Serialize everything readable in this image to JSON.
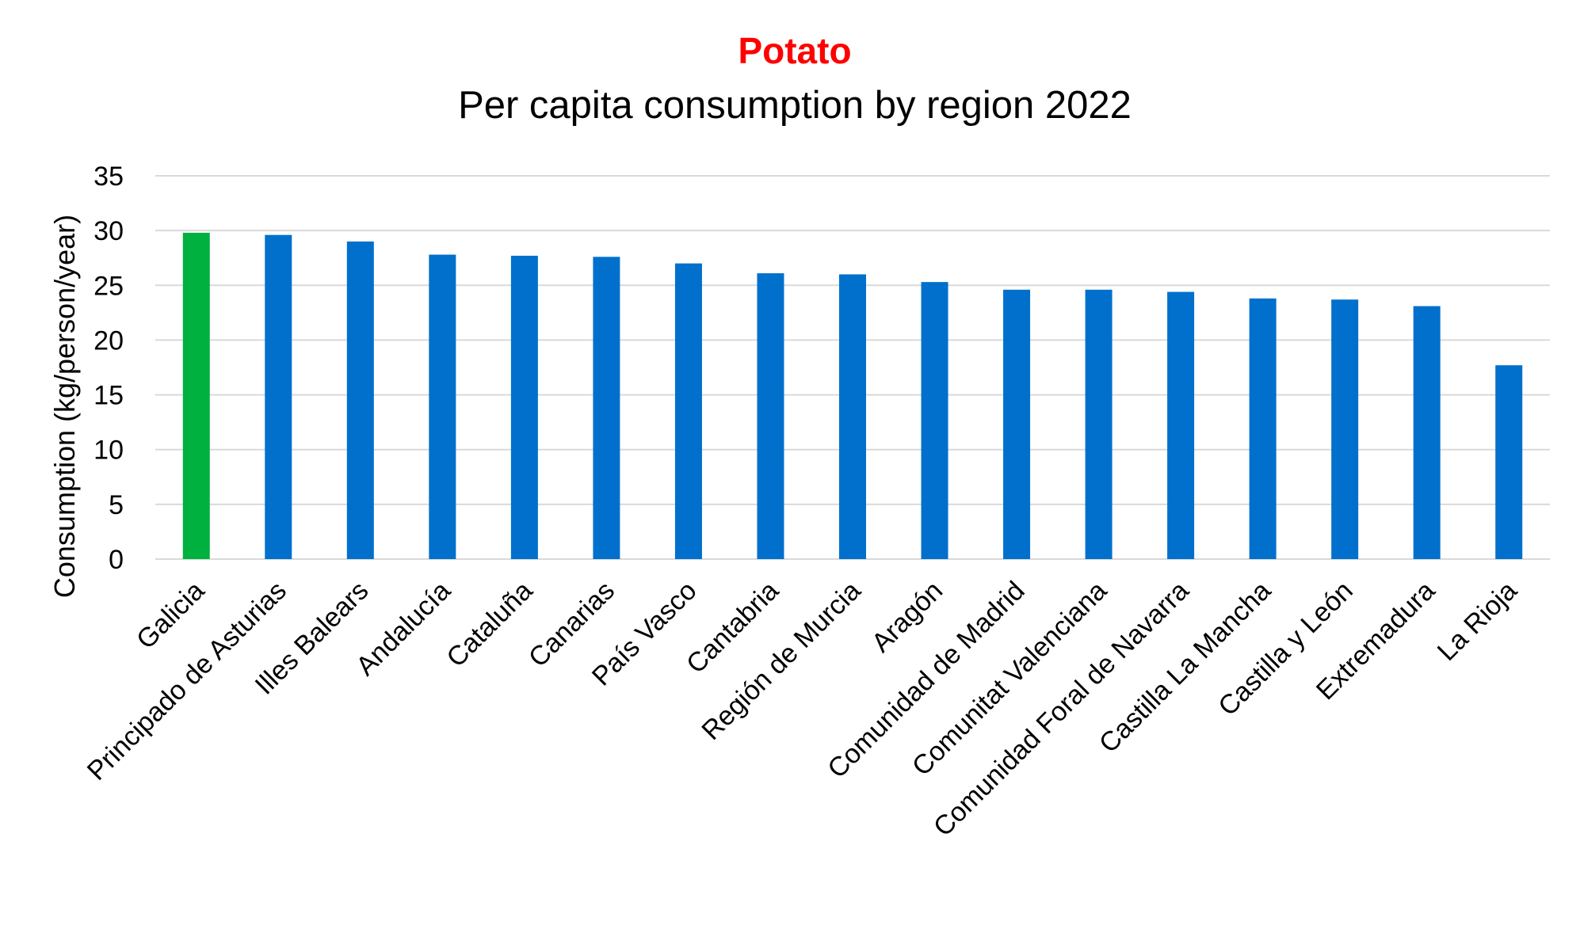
{
  "chart_data": {
    "type": "bar",
    "title": "Potato",
    "subtitle": "Per capita consumption by region 2022",
    "xlabel": "",
    "ylabel": "Consumption (kg/person/year)",
    "ylim": [
      0,
      35
    ],
    "yticks": [
      0,
      5,
      10,
      15,
      20,
      25,
      30,
      35
    ],
    "grid": true,
    "legend": "none",
    "categories": [
      "Galicia",
      "Principado de Asturias",
      "Illes Balears",
      "Andalucía",
      "Cataluña",
      "Canarias",
      "País Vasco",
      "Cantabria",
      "Región de Murcia",
      "Aragón",
      "Comunidad de Madrid",
      "Comunitat Valenciana",
      "Comunidad Foral de Navarra",
      "Castilla La Mancha",
      "Castilla y León",
      "Extremadura",
      "La Rioja"
    ],
    "values": [
      29.8,
      29.6,
      29.0,
      27.8,
      27.7,
      27.6,
      27.0,
      26.1,
      26.0,
      25.3,
      24.6,
      24.6,
      24.4,
      23.8,
      23.7,
      23.1,
      17.7
    ],
    "highlight_category": "Galicia",
    "colors": {
      "bar": "#0070cc",
      "highlight": "#00b140",
      "title": "#ff0000",
      "grid": "#d9d9d9",
      "text": "#000000"
    }
  }
}
